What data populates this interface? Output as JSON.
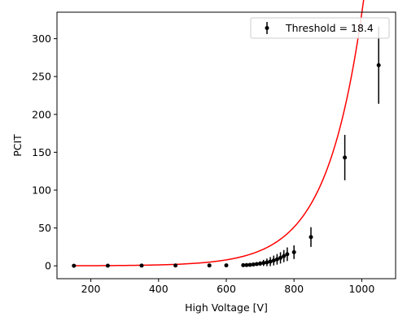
{
  "chart_data": {
    "type": "scatter",
    "xlabel": "High Voltage [V]",
    "ylabel": "PCIT",
    "xlim": [
      100,
      1100
    ],
    "ylim": [
      -17,
      335
    ],
    "xticks": [
      200,
      400,
      600,
      800,
      1000
    ],
    "yticks": [
      0,
      50,
      100,
      150,
      200,
      250,
      300
    ],
    "grid": false,
    "legend": {
      "placement": "top-right",
      "label": "Threshold = 18.4"
    },
    "colors": {
      "data": "#000000",
      "fit": "#ff0000"
    },
    "series": [
      {
        "name": "Threshold = 18.4",
        "kind": "errorbar",
        "x": [
          150,
          250,
          350,
          450,
          550,
          600,
          650,
          660,
          670,
          680,
          690,
          700,
          710,
          720,
          730,
          740,
          750,
          760,
          770,
          780,
          800,
          850,
          950,
          1050
        ],
        "y": [
          0.1,
          0.2,
          0.3,
          0.4,
          0.5,
          0.6,
          0.8,
          1.0,
          1.3,
          1.8,
          2.3,
          3.0,
          3.8,
          4.6,
          5.6,
          7.0,
          8.6,
          10.5,
          12.8,
          15.3,
          18.0,
          38.0,
          143.0,
          265.0
        ],
        "yerr": [
          0,
          0,
          0,
          0,
          0,
          0,
          0.3,
          0.5,
          1.0,
          1.5,
          2.0,
          3.0,
          4.0,
          5.0,
          6.0,
          6.5,
          7.0,
          7.5,
          8.0,
          9.0,
          9.0,
          13.0,
          30.0,
          51.0
        ]
      },
      {
        "kind": "fit",
        "model": "exponential",
        "a": 0.0284,
        "b": 0.00937,
        "x_range": [
          150,
          1050
        ]
      }
    ]
  }
}
